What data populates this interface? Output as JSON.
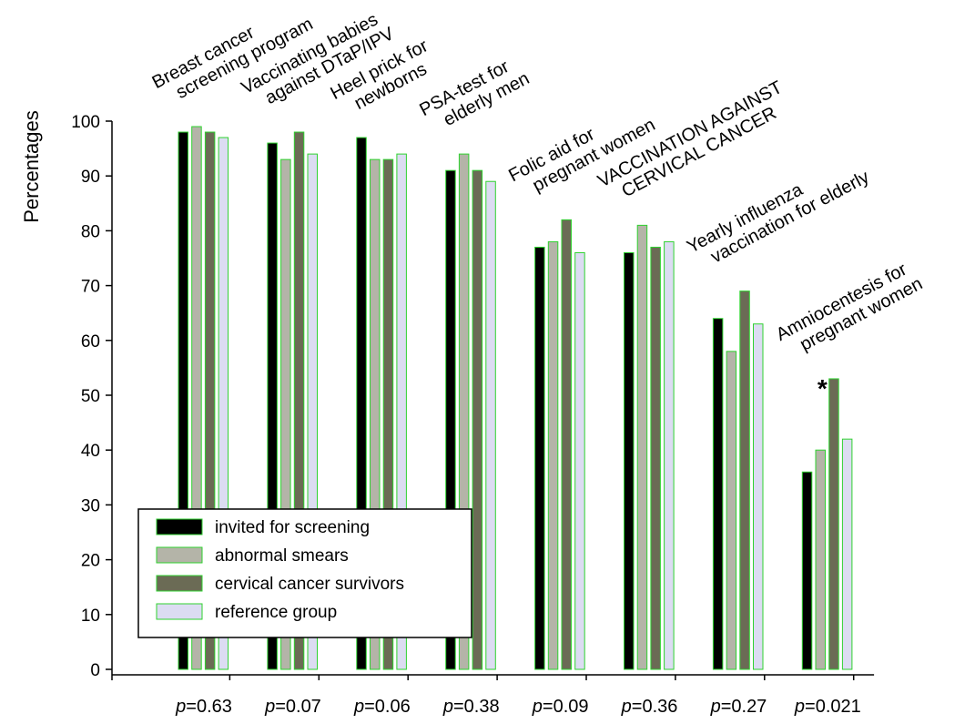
{
  "chart_data": {
    "type": "bar",
    "ylabel": "Percentages",
    "ylim": [
      0,
      100
    ],
    "yticks": [
      0,
      10,
      20,
      30,
      40,
      50,
      60,
      70,
      80,
      90,
      100
    ],
    "grid": false,
    "legend_position": "bottom-left",
    "categories": [
      [
        "Breast cancer",
        "screening program"
      ],
      [
        "Vaccinating babies",
        "against DTaP/IPV"
      ],
      [
        "Heel prick for",
        "newborns"
      ],
      [
        "PSA-test for",
        "elderly men"
      ],
      [
        "Folic aid for",
        "pregnant women"
      ],
      [
        "VACCINATION AGAINST",
        "CERVICAL CANCER"
      ],
      [
        "Yearly influenza",
        "vaccination for elderly"
      ],
      [
        "Amniocentesis for",
        "pregnant women"
      ]
    ],
    "p_values": [
      "=0.63",
      "=0.07",
      "=0.06",
      "=0.38",
      "=0.09",
      "=0.36",
      "=0.27",
      "=0.021"
    ],
    "p_prefix": "p",
    "series": [
      {
        "name": "invited for screening",
        "color": "#000000",
        "values": [
          98,
          96,
          97,
          91,
          77,
          76,
          64,
          36
        ]
      },
      {
        "name": "abnormal smears",
        "color": "#b4b4a8",
        "values": [
          99,
          93,
          93,
          94,
          78,
          81,
          58,
          40
        ]
      },
      {
        "name": "cervical cancer survivors",
        "color": "#6b6b55",
        "values": [
          98,
          98,
          93,
          91,
          82,
          77,
          69,
          53
        ]
      },
      {
        "name": "reference group",
        "color": "#dcdcf2",
        "values": [
          97,
          94,
          94,
          89,
          76,
          78,
          63,
          42
        ]
      }
    ],
    "edge_color": "#2fd22f",
    "annotations": [
      {
        "text": "*",
        "category_index": 7,
        "value": 53
      }
    ]
  }
}
